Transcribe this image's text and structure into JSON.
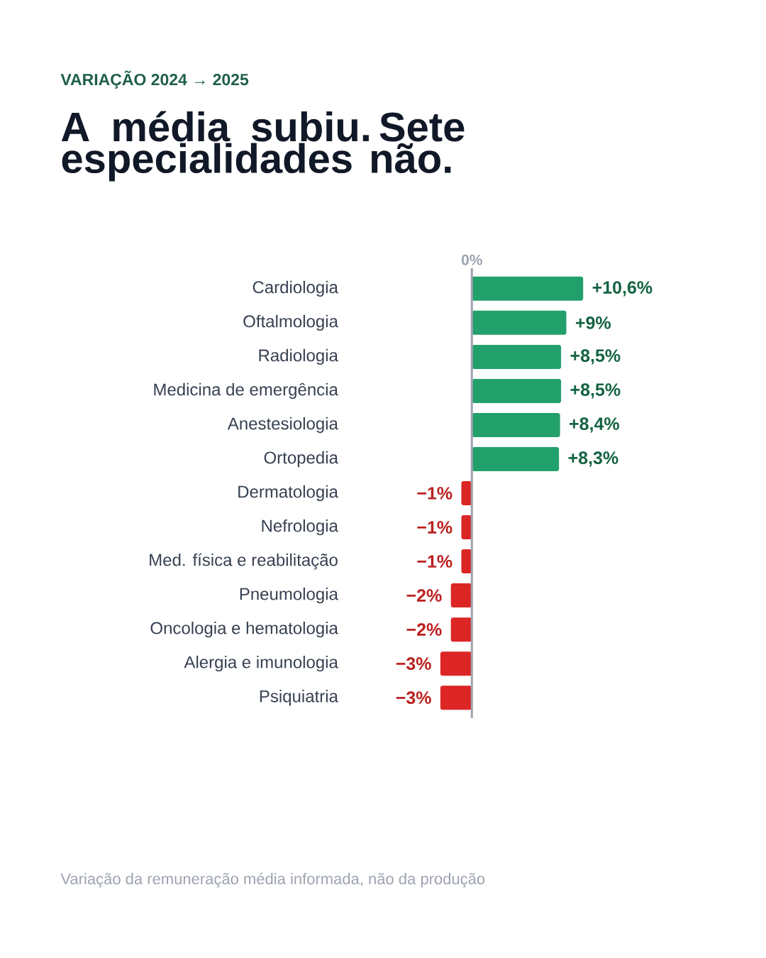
{
  "chart_data": {
    "type": "bar",
    "orientation": "horizontal",
    "subtitle": "VARIAÇÃO 2024 → 2025",
    "title": "A média subiu. Sete especialidades não.",
    "categories": [
      "Cardiologia",
      "Oftalmologia",
      "Radiologia",
      "Medicina de emergência",
      "Anestesiologia",
      "Ortopedia",
      "Dermatologia",
      "Nefrologia",
      "Med. física e reabilitação",
      "Pneumologia",
      "Oncologia e hematologia",
      "Alergia e imunologia",
      "Psiquiatria"
    ],
    "values": [
      10.6,
      9,
      8.5,
      8.5,
      8.4,
      8.3,
      -1,
      -1,
      -1,
      -2,
      -2,
      -3,
      -3
    ],
    "value_labels": [
      "+10,6%",
      "+9%",
      "+8,5%",
      "+8,5%",
      "+8,4%",
      "+8,3%",
      "−1%",
      "−1%",
      "−1%",
      "−2%",
      "−2%",
      "−3%",
      "−3%"
    ],
    "colors": [
      "#22a06b",
      "#22a06b",
      "#22a06b",
      "#22a06b",
      "#22a06b",
      "#22a06b",
      "#dc2626",
      "#dc2626",
      "#dc2626",
      "#dc2626",
      "#dc2626",
      "#dc2626",
      "#dc2626"
    ],
    "ref_lines": [
      {
        "axis": "x",
        "value": 0,
        "label": "0%",
        "color": "#9ca3af"
      }
    ],
    "annotations": [
      "Variação da remuneração média informada, não da produção"
    ]
  }
}
